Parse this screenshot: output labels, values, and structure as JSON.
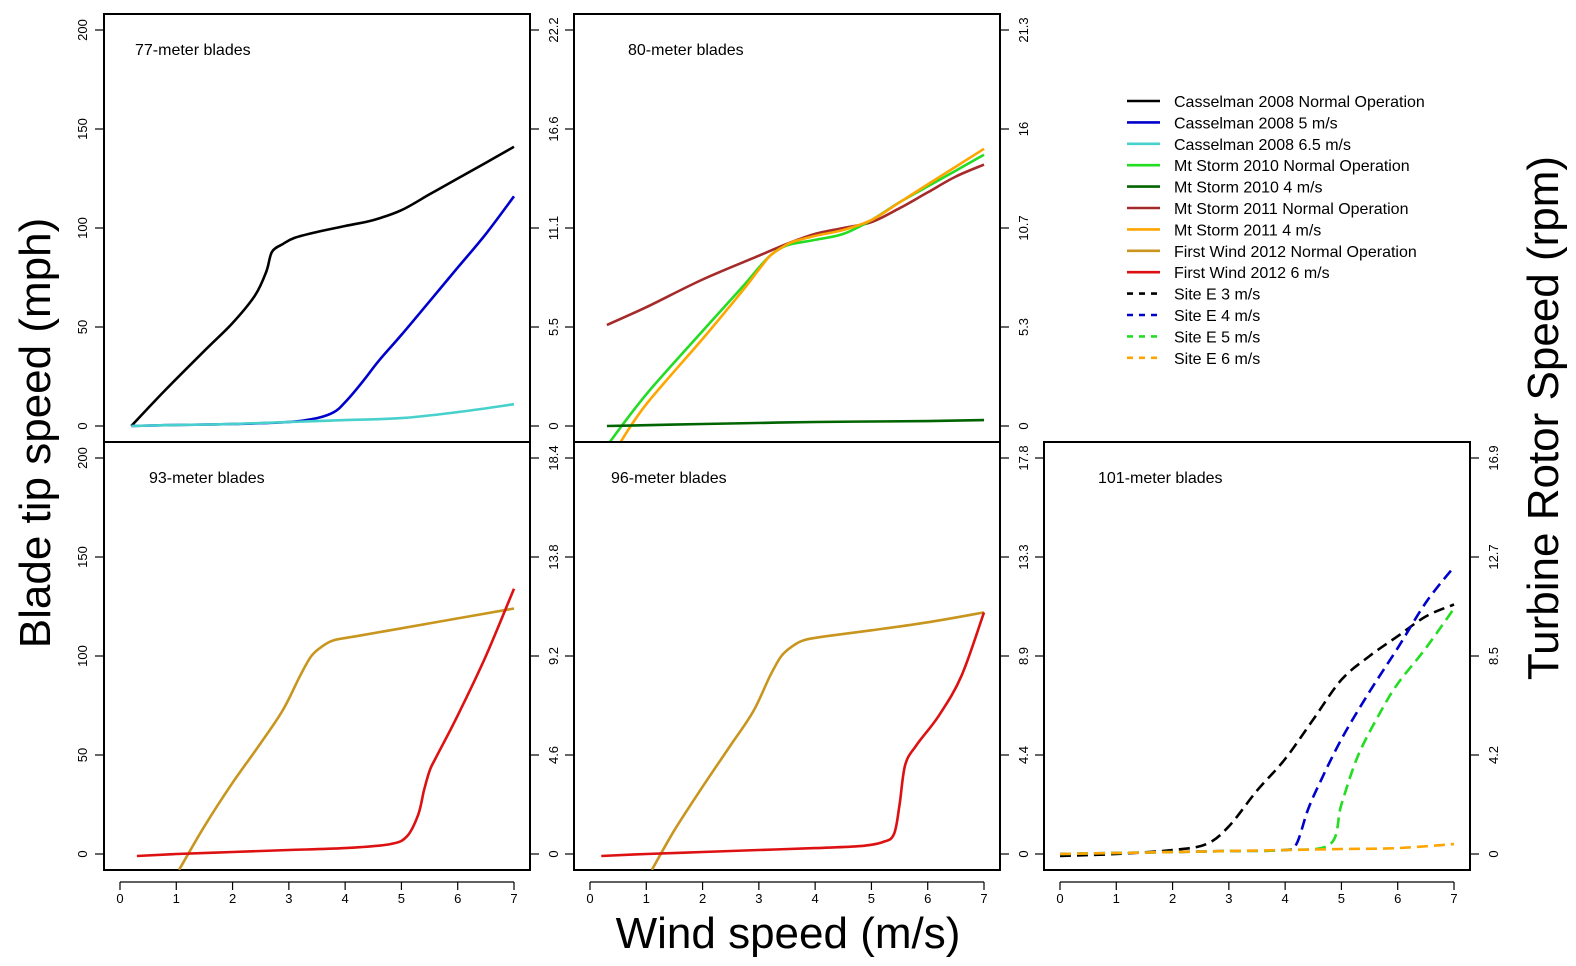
{
  "figure": {
    "ylabel_left": "Blade tip speed (mph)",
    "ylabel_right": "Turbine Rotor Speed (rpm)",
    "xlabel": "Wind speed (m/s)"
  },
  "legend": [
    {
      "label": "Casselman 2008 Normal Operation",
      "color": "#000000",
      "dash": false
    },
    {
      "label": "Casselman 2008 5 m/s",
      "color": "#0000cd",
      "dash": false
    },
    {
      "label": "Casselman 2008 6.5 m/s",
      "color": "#48d1cc",
      "dash": false
    },
    {
      "label": "Mt Storm 2010  Normal Operation",
      "color": "#22dd22",
      "dash": false
    },
    {
      "label": "Mt Storm 2010 4 m/s",
      "color": "#006400",
      "dash": false
    },
    {
      "label": "Mt Storm 2011  Normal Operation",
      "color": "#a52a2a",
      "dash": false
    },
    {
      "label": "Mt Storm 2011 4 m/s",
      "color": "#ffa500",
      "dash": false
    },
    {
      "label": "First Wind 2012  Normal Operation",
      "color": "#c8961e",
      "dash": false
    },
    {
      "label": "First Wind 2012 6 m/s",
      "color": "#dd1111",
      "dash": false
    },
    {
      "label": "Site E 3 m/s",
      "color": "#000000",
      "dash": true
    },
    {
      "label": "Site E 4 m/s",
      "color": "#0000cd",
      "dash": true
    },
    {
      "label": "Site E 5 m/s",
      "color": "#22dd22",
      "dash": true
    },
    {
      "label": "Site E 6 m/s",
      "color": "#ffa500",
      "dash": true
    }
  ],
  "chart_data": [
    {
      "type": "line",
      "title": "77-meter blades",
      "xlim": [
        0,
        7
      ],
      "ylim": [
        0,
        200
      ],
      "x_ticks": [
        "0",
        "1",
        "2",
        "3",
        "4",
        "5",
        "6",
        "7"
      ],
      "y_ticks": [
        "0",
        "50",
        "100",
        "150",
        "200"
      ],
      "right_ticks": [
        "0",
        "5.5",
        "11.1",
        "16.6",
        "22.2"
      ],
      "series": [
        {
          "name": "Casselman 2008 Normal Operation",
          "color": "#000000",
          "dash": false,
          "x": [
            0.2,
            0.8,
            1.5,
            2.0,
            2.4,
            2.6,
            2.7,
            2.9,
            3.1,
            3.5,
            4.0,
            4.5,
            5.0,
            5.5,
            6.0,
            6.5,
            7.0
          ],
          "y": [
            0,
            18,
            38,
            52,
            66,
            78,
            88,
            92,
            95,
            98,
            101,
            104,
            109,
            117,
            125,
            133,
            141
          ]
        },
        {
          "name": "Casselman 2008 5 m/s",
          "color": "#0000cd",
          "dash": false,
          "x": [
            0.2,
            1.0,
            2.0,
            3.0,
            3.5,
            3.8,
            4.0,
            4.3,
            4.6,
            5.0,
            5.5,
            6.0,
            6.5,
            7.0
          ],
          "y": [
            0,
            0.5,
            1,
            2,
            4,
            7,
            12,
            22,
            33,
            46,
            63,
            80,
            97,
            116
          ]
        },
        {
          "name": "Casselman 2008 6.5 m/s",
          "color": "#48d1cc",
          "dash": false,
          "x": [
            0.2,
            1.0,
            2.0,
            3.0,
            4.0,
            5.0,
            6.0,
            7.0
          ],
          "y": [
            0,
            0.5,
            1,
            2,
            3,
            4,
            7,
            11
          ]
        }
      ]
    },
    {
      "type": "line",
      "title": "80-meter blades",
      "xlim": [
        0,
        7
      ],
      "ylim": [
        0,
        200
      ],
      "x_ticks": [
        "0",
        "1",
        "2",
        "3",
        "4",
        "5",
        "6",
        "7"
      ],
      "y_ticks": [
        "",
        "",
        "",
        "",
        ""
      ],
      "right_ticks": [
        "0",
        "5.3",
        "10.7",
        "16",
        "21.3"
      ],
      "series": [
        {
          "name": "Mt Storm 2011  Normal Operation",
          "color": "#a52a2a",
          "dash": false,
          "x": [
            0.3,
            1.0,
            2.0,
            3.0,
            3.5,
            4.0,
            4.5,
            5.0,
            5.5,
            6.0,
            6.5,
            7.0
          ],
          "y": [
            51,
            60,
            74,
            86,
            92,
            97,
            100,
            103,
            110,
            118,
            126,
            132
          ]
        },
        {
          "name": "Mt Storm 2010  Normal Operation",
          "color": "#22dd22",
          "dash": false,
          "x": [
            0.3,
            1.0,
            2.0,
            2.7,
            3.0,
            3.2,
            3.4,
            3.6,
            4.0,
            4.5,
            5.0,
            5.5,
            6.0,
            6.5,
            7.0
          ],
          "y": [
            -10,
            16,
            48,
            70,
            80,
            86,
            90,
            92,
            94,
            97,
            104,
            113,
            121,
            129,
            137
          ]
        },
        {
          "name": "Mt Storm 2011 4 m/s",
          "color": "#ffa500",
          "dash": false,
          "x": [
            0.5,
            1.0,
            2.0,
            2.7,
            3.0,
            3.2,
            3.4,
            3.6,
            4.0,
            4.5,
            5.0,
            5.5,
            6.0,
            6.5,
            7.0
          ],
          "y": [
            -10,
            11,
            44,
            68,
            79,
            86,
            90,
            93,
            96,
            99,
            104,
            113,
            122,
            131,
            140
          ]
        },
        {
          "name": "Mt Storm 2010 4 m/s",
          "color": "#006400",
          "dash": false,
          "x": [
            0.3,
            2.0,
            4.0,
            6.0,
            7.0
          ],
          "y": [
            0,
            1,
            2,
            2.5,
            3
          ]
        }
      ]
    },
    {
      "type": "line",
      "title": "93-meter blades",
      "xlim": [
        0,
        7
      ],
      "ylim": [
        0,
        200
      ],
      "x_ticks": [
        "0",
        "1",
        "2",
        "3",
        "4",
        "5",
        "6",
        "7"
      ],
      "y_ticks": [
        "0",
        "50",
        "100",
        "150",
        "200"
      ],
      "right_ticks": [
        "0",
        "4.6",
        "9.2",
        "13.8",
        "18.4"
      ],
      "series": [
        {
          "name": "First Wind 2012  Normal Operation",
          "color": "#c8961e",
          "dash": false,
          "x": [
            1.05,
            1.5,
            2.0,
            2.5,
            2.9,
            3.2,
            3.4,
            3.6,
            3.8,
            4.2,
            5.0,
            6.0,
            7.0
          ],
          "y": [
            -8,
            14,
            36,
            56,
            73,
            90,
            100,
            105,
            108,
            110,
            114,
            119,
            124
          ]
        },
        {
          "name": "First Wind 2012 6 m/s",
          "color": "#dd1111",
          "dash": false,
          "x": [
            0.3,
            1.0,
            2.0,
            3.0,
            4.0,
            4.8,
            5.1,
            5.3,
            5.4,
            5.5,
            5.6,
            6.0,
            6.5,
            7.0
          ],
          "y": [
            -1,
            0,
            1,
            2,
            3,
            5,
            9,
            20,
            32,
            42,
            48,
            70,
            100,
            134
          ]
        }
      ]
    },
    {
      "type": "line",
      "title": "96-meter blades",
      "xlim": [
        0,
        7
      ],
      "ylim": [
        0,
        200
      ],
      "x_ticks": [
        "0",
        "1",
        "2",
        "3",
        "4",
        "5",
        "6",
        "7"
      ],
      "y_ticks": [
        "",
        "",
        "",
        "",
        ""
      ],
      "right_ticks": [
        "0",
        "4.4",
        "8.9",
        "13.3",
        "17.8"
      ],
      "series": [
        {
          "name": "First Wind 2012  Normal Operation",
          "color": "#c8961e",
          "dash": false,
          "x": [
            1.1,
            1.5,
            2.0,
            2.5,
            2.9,
            3.2,
            3.4,
            3.6,
            3.8,
            4.2,
            5.0,
            6.0,
            7.0
          ],
          "y": [
            -8,
            12,
            34,
            55,
            72,
            90,
            100,
            105,
            108,
            110,
            113,
            117,
            122
          ]
        },
        {
          "name": "First Wind 2012 6 m/s",
          "color": "#dd1111",
          "dash": false,
          "x": [
            0.2,
            1.0,
            2.0,
            3.0,
            4.0,
            4.8,
            5.2,
            5.4,
            5.5,
            5.6,
            5.8,
            6.2,
            6.6,
            7.0
          ],
          "y": [
            -1,
            0,
            1,
            2,
            3,
            4,
            6,
            10,
            25,
            45,
            55,
            70,
            90,
            122
          ]
        }
      ]
    },
    {
      "type": "line",
      "title": "101-meter blades",
      "xlim": [
        0,
        7
      ],
      "ylim": [
        0,
        200
      ],
      "x_ticks": [
        "0",
        "1",
        "2",
        "3",
        "4",
        "5",
        "6",
        "7"
      ],
      "y_ticks": [
        "",
        "",
        "",
        "",
        ""
      ],
      "right_ticks": [
        "0",
        "4.2",
        "8.5",
        "12.7",
        "16.9"
      ],
      "series": [
        {
          "name": "Site E 3 m/s",
          "color": "#000000",
          "dash": true,
          "x": [
            0.0,
            1.0,
            2.0,
            2.6,
            3.0,
            3.5,
            4.0,
            4.5,
            5.0,
            5.5,
            6.0,
            6.5,
            7.0
          ],
          "y": [
            -1,
            0,
            2,
            5,
            14,
            32,
            48,
            68,
            88,
            100,
            110,
            120,
            126
          ]
        },
        {
          "name": "Site E 4 m/s",
          "color": "#0000cd",
          "dash": true,
          "x": [
            0.0,
            1.0,
            2.0,
            3.0,
            4.0,
            4.2,
            4.4,
            4.6,
            5.0,
            5.5,
            6.0,
            6.5,
            7.0
          ],
          "y": [
            0,
            0.5,
            1,
            1.5,
            2,
            5,
            22,
            35,
            58,
            82,
            104,
            127,
            145
          ]
        },
        {
          "name": "Site E 5 m/s",
          "color": "#22dd22",
          "dash": true,
          "x": [
            0.0,
            1.0,
            2.0,
            3.0,
            4.0,
            4.8,
            5.0,
            5.3,
            5.7,
            6.0,
            6.5,
            7.0
          ],
          "y": [
            0,
            0.5,
            1,
            1.5,
            2,
            5,
            25,
            50,
            72,
            86,
            104,
            124
          ]
        },
        {
          "name": "Site E 6 m/s",
          "color": "#ffa500",
          "dash": true,
          "x": [
            0.0,
            1.0,
            2.0,
            3.0,
            4.0,
            5.0,
            6.0,
            7.0
          ],
          "y": [
            0,
            0.5,
            1,
            1.5,
            2,
            2.5,
            3,
            5
          ]
        }
      ]
    }
  ]
}
